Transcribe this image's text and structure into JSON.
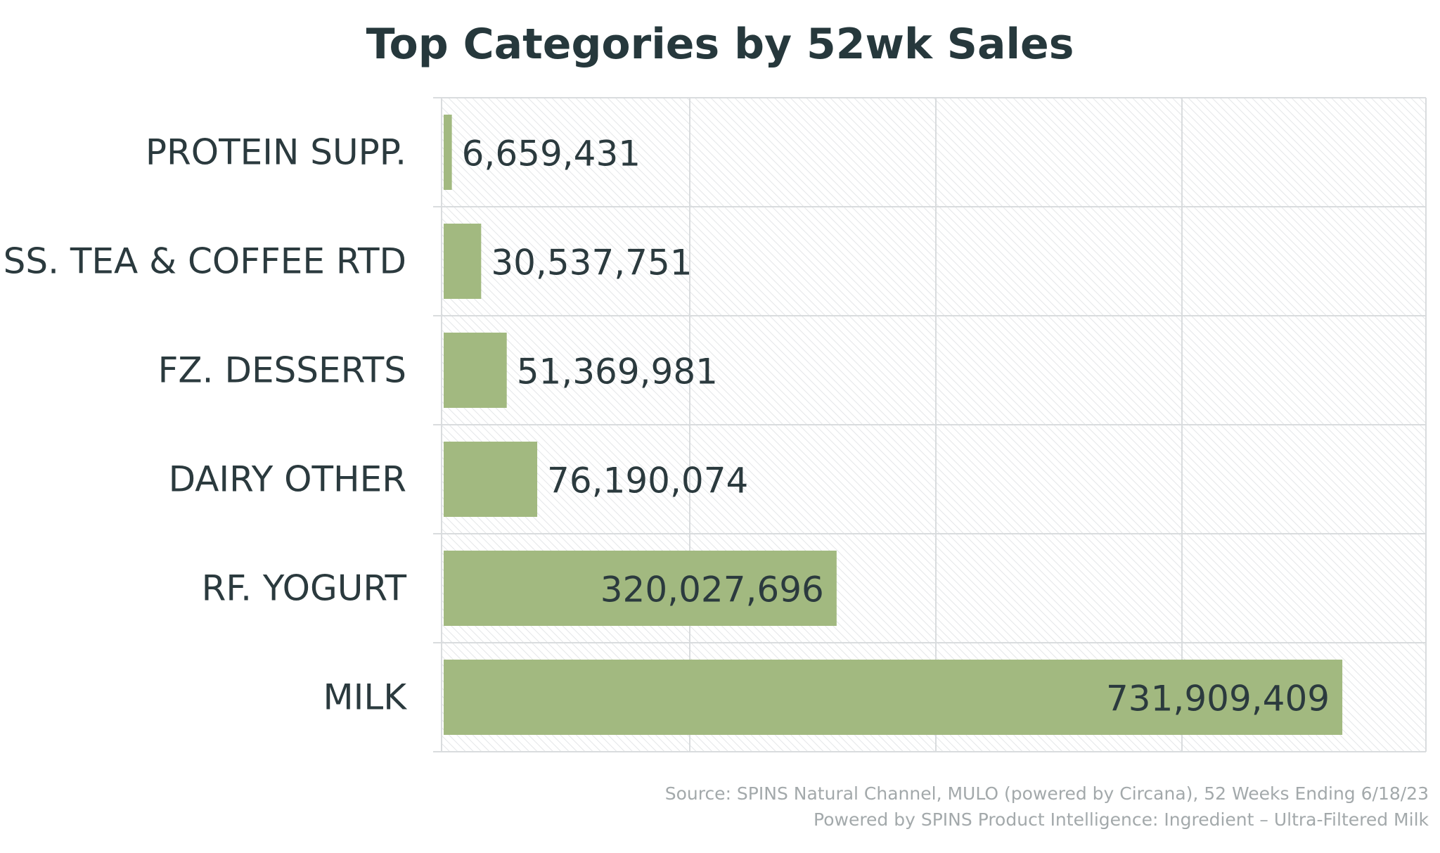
{
  "chart_data": {
    "type": "bar",
    "orientation": "horizontal",
    "title": "Top Categories by 52wk Sales",
    "categories": [
      "PROTEIN SUPP.",
      "SS. TEA & COFFEE RTD",
      "FZ. DESSERTS",
      "DAIRY OTHER",
      "RF. YOGURT",
      "MILK"
    ],
    "values": [
      6659431,
      30537751,
      51369981,
      76190074,
      320027696,
      731909409
    ],
    "value_labels": [
      "6,659,431",
      "30,537,751",
      "51,369,981",
      "76,190,074",
      "320,027,696",
      "731,909,409"
    ],
    "xlim": [
      0,
      800000000
    ],
    "grid": true,
    "xlabel": "",
    "ylabel": ""
  },
  "colors": {
    "bar": "#a2b980",
    "grid": "#d9dcde",
    "hatch": "#e4e6e8",
    "text": "#2b3a3e",
    "title": "#26383c",
    "source_text": "#a3a9ab"
  },
  "source": {
    "line1": "Source: SPINS Natural Channel, MULO (powered by Circana), 52 Weeks Ending 6/18/23",
    "line2": "Powered by SPINS Product Intelligence: Ingredient – Ultra-Filtered Milk"
  }
}
